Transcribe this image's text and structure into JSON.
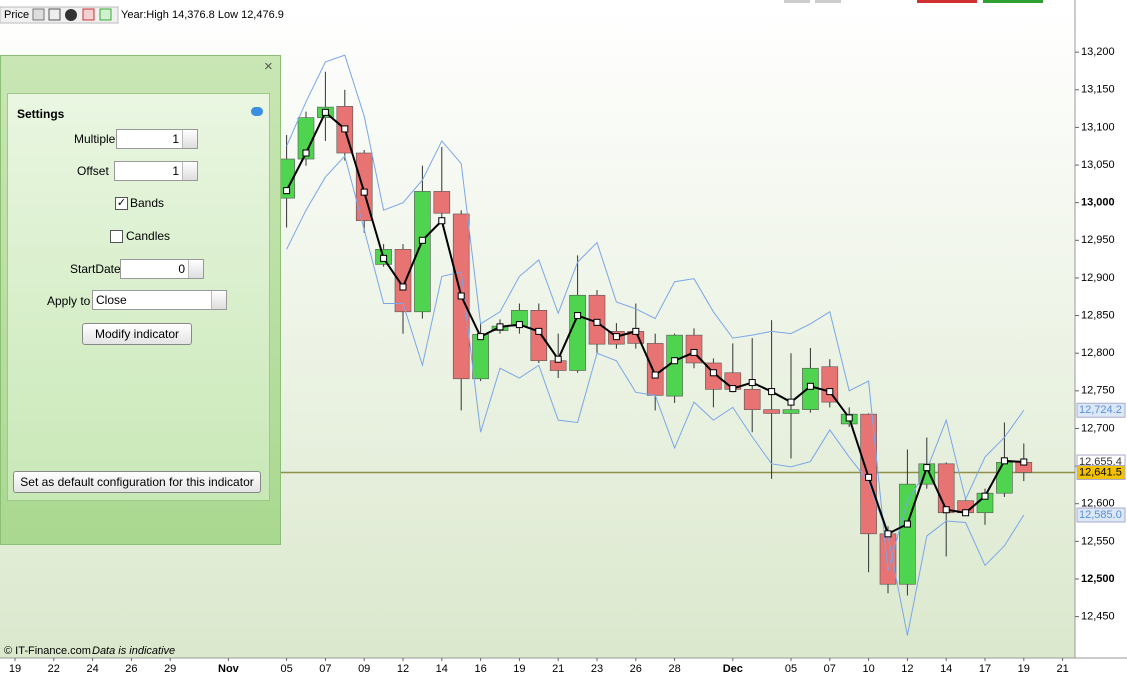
{
  "toolbar": {
    "title": "Price",
    "info": "Year:High 14,376.8 Low 12,476.9"
  },
  "settings": {
    "title": "Settings",
    "fields": [
      {
        "label": "Multiple",
        "value": 1
      },
      {
        "label": "Offset",
        "value": 1
      },
      {
        "label": "Bands",
        "checked": true
      },
      {
        "label": "Candles",
        "checked": false
      },
      {
        "label": "StartDate",
        "value": 0
      },
      {
        "label": "Apply to",
        "value": "Close"
      }
    ],
    "modify_button": "Modify indicator",
    "default_button": "Set as default configuration for this indicator"
  },
  "footer": {
    "copyright": "© IT-Finance.com",
    "note": "Data is indicative"
  },
  "chart_data": {
    "type": "candlestick",
    "categories": [
      "19",
      null,
      "22",
      null,
      "24",
      null,
      "26",
      null,
      "29",
      null,
      null,
      "Nov",
      null,
      null,
      "05",
      null,
      "07",
      null,
      "09",
      null,
      "12",
      null,
      "14",
      null,
      "16",
      null,
      "19",
      null,
      "21",
      null,
      "23",
      null,
      "26",
      null,
      "28",
      null,
      null,
      "Dec",
      null,
      null,
      "05",
      null,
      "07",
      null,
      "10",
      null,
      "12",
      null,
      "14",
      null,
      "17",
      null,
      "19",
      null,
      "21"
    ],
    "open": [
      null,
      null,
      null,
      null,
      null,
      null,
      null,
      null,
      null,
      null,
      null,
      null,
      null,
      null,
      13006,
      13058,
      13113,
      13128,
      13066,
      12918,
      12938,
      12855,
      13015,
      12985,
      12766,
      12830,
      12836,
      12857,
      12790,
      12777,
      12877,
      12829,
      12829,
      12813,
      12743,
      12824,
      12787,
      12774,
      12752,
      12725,
      12720,
      12725,
      12782,
      12706,
      12719,
      12560,
      12493,
      12626,
      12653,
      12604,
      12588,
      12614,
      12655,
      null,
      null
    ],
    "high": [
      null,
      null,
      null,
      null,
      null,
      null,
      null,
      null,
      null,
      null,
      null,
      null,
      null,
      null,
      13090,
      13121,
      13174,
      13150,
      13070,
      12945,
      12945,
      13049,
      13074,
      12990,
      12840,
      12845,
      12866,
      12866,
      12826,
      12930,
      12884,
      12840,
      12866,
      12826,
      12826,
      12833,
      12793,
      12813,
      12820,
      12844,
      12800,
      12807,
      12792,
      12728,
      12720,
      12570,
      12672,
      12688,
      12655,
      12607,
      12620,
      12708,
      12680,
      null,
      null
    ],
    "low": [
      null,
      null,
      null,
      null,
      null,
      null,
      null,
      null,
      null,
      null,
      null,
      null,
      null,
      null,
      12967,
      13049,
      13082,
      13056,
      12960,
      12915,
      12826,
      12846,
      12976,
      12724,
      12763,
      12826,
      12826,
      12787,
      12767,
      12774,
      12800,
      12806,
      12806,
      12724,
      12734,
      12780,
      12728,
      12748,
      12695,
      12633,
      12660,
      12721,
      12728,
      12702,
      12509,
      12481,
      12478,
      12620,
      12530,
      12585,
      12572,
      12609,
      12630,
      null,
      null
    ],
    "close": [
      null,
      null,
      null,
      null,
      null,
      null,
      null,
      null,
      null,
      null,
      null,
      null,
      null,
      null,
      13058,
      13113,
      13127,
      13066,
      12976,
      12938,
      12855,
      13015,
      12986,
      12766,
      12825,
      12836,
      12857,
      12790,
      12777,
      12877,
      12812,
      12812,
      12813,
      12744,
      12824,
      12787,
      12752,
      12752,
      12725,
      12720,
      12725,
      12780,
      12735,
      12719,
      12560,
      12493,
      12626,
      12653,
      12588,
      12588,
      12614,
      12655,
      12641.5,
      null,
      null
    ],
    "up_color": "#4fd44f",
    "down_color": "#e87373",
    "series": [
      {
        "color": "#7aa6e8",
        "values": [
          null,
          null,
          null,
          null,
          null,
          null,
          null,
          null,
          null,
          null,
          null,
          null,
          null,
          null,
          13075,
          13134,
          13187,
          13196,
          13115,
          12990,
          13000,
          13030,
          13082,
          13052,
          12839,
          12855,
          12902,
          12924,
          12853,
          12921,
          12947,
          12868,
          12859,
          12846,
          12895,
          12899,
          12855,
          12820,
          12824,
          12829,
          12826,
          12839,
          12855,
          12750,
          12763,
          12511,
          12603,
          12645,
          12711,
          12606,
          12662,
          12688,
          12724.2,
          null,
          null
        ]
      },
      {
        "color": "#7aa6e8",
        "values": [
          null,
          null,
          null,
          null,
          null,
          null,
          null,
          null,
          null,
          null,
          null,
          null,
          null,
          null,
          12938,
          12990,
          13034,
          13062,
          12964,
          12866,
          12866,
          12784,
          12902,
          12908,
          12695,
          12780,
          12767,
          12784,
          12711,
          12708,
          12800,
          12790,
          12748,
          12744,
          12674,
          12735,
          12711,
          12728,
          12689,
          12653,
          12649,
          12656,
          12698,
          12662,
          12629,
          12557,
          12425,
          12557,
          12577,
          12575,
          12518,
          12544,
          12585,
          null,
          null
        ]
      },
      {
        "color": "#000000",
        "markers": true,
        "values": [
          null,
          null,
          null,
          null,
          null,
          null,
          null,
          null,
          null,
          null,
          null,
          null,
          null,
          null,
          13016,
          13066,
          13120,
          13098,
          13014,
          12926,
          12888,
          12950,
          12976,
          12876,
          12822,
          12835,
          12838,
          12829,
          12792,
          12850,
          12841,
          12822,
          12829,
          12771,
          12790,
          12801,
          12774,
          12753,
          12761,
          12749,
          12735,
          12756,
          12749,
          12714,
          12635,
          12560,
          12573,
          12648,
          12592,
          12588,
          12610,
          12657,
          12655.4,
          null,
          null
        ]
      }
    ],
    "price_tags": [
      {
        "value": 12724.2,
        "label": "12,724.2",
        "color": "#dce8f8",
        "text_color": "#5a8fd6"
      },
      {
        "value": 12655.4,
        "label": "12,655.4",
        "color": "#ffffff",
        "text_color": "#333333"
      },
      {
        "value": 12641.5,
        "label": "12,641.5",
        "color": "#f2c200",
        "text_color": "#000000",
        "line_color": "#8f8f4a"
      },
      {
        "value": 12585.0,
        "label": "12,585.0",
        "color": "#dce8f8",
        "text_color": "#5a8fd6"
      }
    ],
    "ylim": [
      12395,
      13260
    ],
    "yticks": [
      {
        "value": 13200,
        "label": "13,200"
      },
      {
        "value": 13150,
        "label": "13,150"
      },
      {
        "value": 13100,
        "label": "13,100"
      },
      {
        "value": 13050,
        "label": "13,050"
      },
      {
        "value": 13000,
        "label": "13,000",
        "bold": true
      },
      {
        "value": 12950,
        "label": "12,950"
      },
      {
        "value": 12900,
        "label": "12,900"
      },
      {
        "value": 12850,
        "label": "12,850"
      },
      {
        "value": 12800,
        "label": "12,800"
      },
      {
        "value": 12750,
        "label": "12,750"
      },
      {
        "value": 12700,
        "label": "12,700"
      },
      {
        "value": 12650,
        "label": "12,650"
      },
      {
        "value": 12600,
        "label": "12,600"
      },
      {
        "value": 12550,
        "label": "12,550"
      },
      {
        "value": 12500,
        "label": "12,500",
        "bold": true
      },
      {
        "value": 12450,
        "label": "12,450"
      }
    ],
    "grid": false
  }
}
